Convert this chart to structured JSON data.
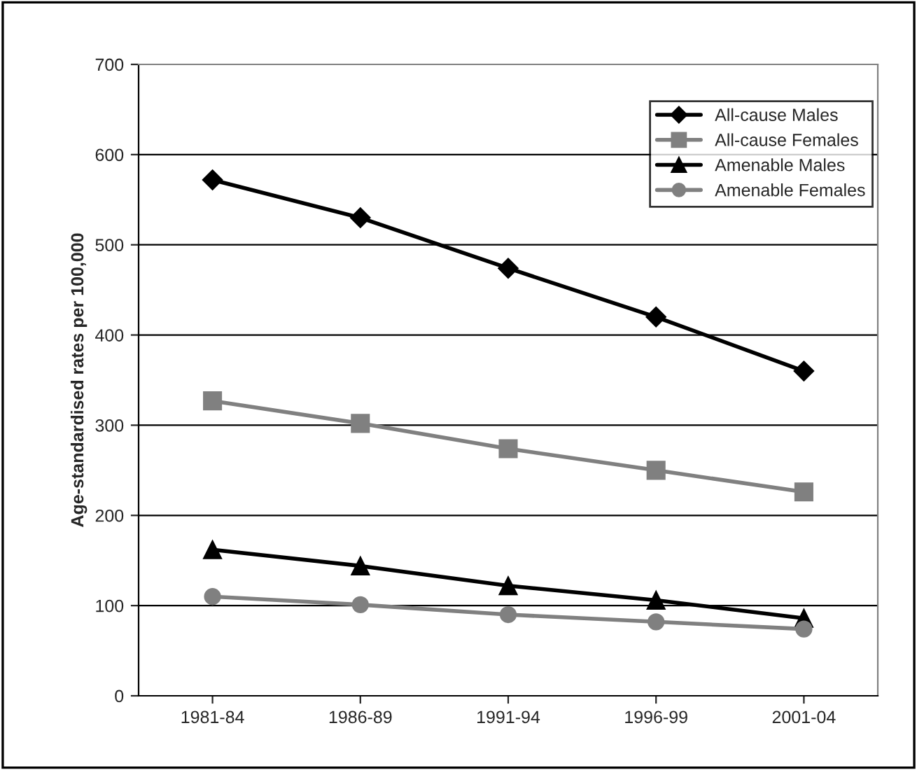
{
  "chart_data": {
    "type": "line",
    "ylabel": "Age-standardised rates per 100,000",
    "categories": [
      "1981-84",
      "1986-89",
      "1991-94",
      "1996-99",
      "2001-04"
    ],
    "series": [
      {
        "name": "All-cause Males",
        "color": "#000000",
        "marker": "diamond",
        "values": [
          572,
          530,
          474,
          420,
          360
        ]
      },
      {
        "name": "All-cause Females",
        "color": "#808080",
        "marker": "square",
        "values": [
          327,
          302,
          274,
          250,
          226
        ]
      },
      {
        "name": "Amenable Males",
        "color": "#000000",
        "marker": "triangle",
        "values": [
          162,
          144,
          122,
          106,
          86
        ]
      },
      {
        "name": "Amenable Females",
        "color": "#808080",
        "marker": "circle",
        "values": [
          110,
          101,
          90,
          82,
          74
        ]
      }
    ],
    "ylim": [
      0,
      700
    ],
    "yticks": [
      0,
      100,
      200,
      300,
      400,
      500,
      600,
      700
    ],
    "grid": "y",
    "legend": "top right",
    "line_style": "solid"
  }
}
